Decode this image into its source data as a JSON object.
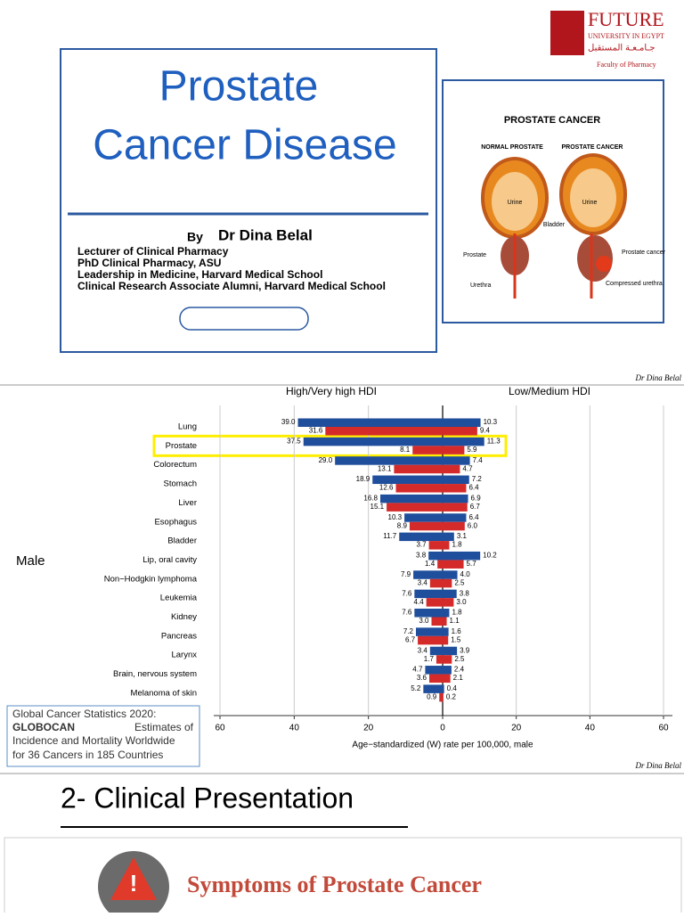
{
  "slide1": {
    "title_lines": [
      "Prostate",
      "Cancer Disease"
    ],
    "by": "By",
    "author": "Dr Dina Belal",
    "credentials": [
      "Lecturer of Clinical Pharmacy",
      "PhD Clinical Pharmacy, ASU",
      "Leadership in Medicine, Harvard Medical School",
      "Clinical Research Associate Alumni, Harvard Medical School"
    ]
  },
  "logo": {
    "name": "FUTURE",
    "subtitle": "UNIVERSITY IN EGYPT",
    "arabic": "جـامـعـة المستقبل",
    "faculty": "Faculty of Pharmacy"
  },
  "diagram": {
    "title": "PROSTATE CANCER",
    "normal": "NORMAL PROSTATE",
    "cancer": "PROSTATE CANCER",
    "urine_normal": "Urine",
    "urine_cancer": "Urine",
    "bladder": "Bladder",
    "prostate": "Prostate",
    "urethra": "Urethra",
    "prostate_cancer": "Prostate cancer",
    "compressed": "Compressed urethra"
  },
  "watermarks": [
    "Dr Dina Belal",
    "Dr Dina Belal"
  ],
  "chart_data": {
    "type": "bar",
    "orientation": "horizontal",
    "group_label": "Male",
    "xlabel": "Age−standardized (W) rate per 100,000, male",
    "categories": [
      "Lung",
      "Prostate",
      "Colorectum",
      "Stomach",
      "Liver",
      "Esophagus",
      "Bladder",
      "Lip, oral cavity",
      "Non−Hodgkin lymphoma",
      "Leukemia",
      "Kidney",
      "Pancreas",
      "Larynx",
      "Brain, nervous system",
      "Melanoma of skin"
    ],
    "grid": true,
    "panels": [
      {
        "title": "High/Very high HDI",
        "xlim": [
          60,
          0
        ],
        "xticks": [
          60,
          40,
          20,
          0
        ],
        "series": [
          {
            "color": "#1f4e9c",
            "values": [
              39.0,
              37.5,
              29.0,
              18.9,
              16.8,
              10.3,
              11.7,
              3.8,
              7.9,
              7.6,
              7.6,
              7.2,
              3.4,
              4.7,
              5.2
            ],
            "value_labels": [
              "39.0",
              "37.5",
              "29.0",
              "18.9",
              "16.8",
              "10.3",
              "11.7",
              "3.8",
              "7.9",
              "7.6",
              "7.6",
              "7.2",
              "3.4",
              "4.7",
              "5.2"
            ]
          },
          {
            "color": "#d42a2a",
            "values": [
              31.6,
              8.1,
              13.1,
              12.6,
              15.1,
              8.9,
              3.7,
              1.4,
              3.4,
              4.4,
              3.0,
              6.7,
              1.7,
              3.6,
              0.9
            ],
            "value_labels": [
              "31.6",
              "8.1",
              "13.1",
              "12.6",
              "15.1",
              "8.9",
              "3.7",
              "1.4",
              "3.4",
              "4.4",
              "3.0",
              "6.7",
              "1.7",
              "3.6",
              "0.9"
            ]
          }
        ]
      },
      {
        "title": "Low/Medium HDI",
        "xlim": [
          0,
          60
        ],
        "xticks": [
          20,
          40,
          60
        ],
        "series": [
          {
            "color": "#1f4e9c",
            "values": [
              10.3,
              11.3,
              7.4,
              7.2,
              6.9,
              6.4,
              3.1,
              10.2,
              4.0,
              3.8,
              1.8,
              1.6,
              3.9,
              2.4,
              0.4
            ],
            "value_labels": [
              "10.3",
              "11.3",
              "7.4",
              "7.2",
              "6.9",
              "6.4",
              "3.1",
              "10.2",
              "4.0",
              "3.8",
              "1.8",
              "1.6",
              "3.9",
              "2.4",
              "0.4"
            ]
          },
          {
            "color": "#d42a2a",
            "values": [
              9.4,
              5.9,
              4.7,
              6.4,
              6.7,
              6.0,
              1.8,
              5.7,
              2.5,
              3.0,
              1.1,
              1.5,
              2.5,
              2.1,
              0.2
            ],
            "value_labels": [
              "9.4",
              "5.9",
              "4.7",
              "6.4",
              "6.7",
              "6.0",
              "1.8",
              "5.7",
              "2.5",
              "3.0",
              "1.1",
              "1.5",
              "2.5",
              "2.1",
              "0.2"
            ]
          }
        ]
      }
    ]
  },
  "citation": {
    "lead": "Global Cancer Statistics 2020:",
    "bold": "GLOBOCAN",
    "lines": [
      "Estimates of",
      "Incidence and Mortality Worldwide",
      "for 36 Cancers in 185 Countries"
    ]
  },
  "slide3": {
    "title": "2- Clinical Presentation",
    "banner": "Symptoms of Prostate Cancer"
  }
}
